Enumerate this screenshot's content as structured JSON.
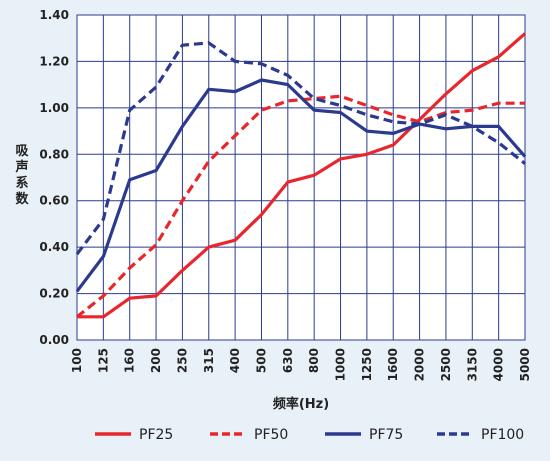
{
  "chart_data": {
    "type": "line",
    "title": "",
    "xlabel": "频率(Hz)",
    "ylabel": "吸声系数",
    "categories": [
      "100",
      "125",
      "160",
      "200",
      "250",
      "315",
      "400",
      "500",
      "630",
      "800",
      "1000",
      "1250",
      "1600",
      "2000",
      "2500",
      "3150",
      "4000",
      "5000"
    ],
    "ylim": [
      0,
      1.4
    ],
    "yticks": [
      "0.00",
      "0.20",
      "0.40",
      "0.60",
      "0.80",
      "1.00",
      "1.20",
      "1.40"
    ],
    "grid": true,
    "legend": "bottom",
    "series": [
      {
        "name": "PF25",
        "color": "#e8262c",
        "dash": false,
        "values": [
          0.1,
          0.1,
          0.18,
          0.19,
          0.3,
          0.4,
          0.43,
          0.54,
          0.68,
          0.71,
          0.78,
          0.8,
          0.84,
          0.95,
          1.06,
          1.16,
          1.22,
          1.32
        ]
      },
      {
        "name": "PF50",
        "color": "#e8262c",
        "dash": true,
        "values": [
          0.1,
          0.19,
          0.31,
          0.41,
          0.6,
          0.77,
          0.88,
          0.99,
          1.03,
          1.04,
          1.05,
          1.01,
          0.97,
          0.94,
          0.98,
          0.99,
          1.02,
          1.02
        ]
      },
      {
        "name": "PF75",
        "color": "#2b3a8f",
        "dash": false,
        "values": [
          0.21,
          0.36,
          0.69,
          0.73,
          0.92,
          1.08,
          1.07,
          1.12,
          1.1,
          0.99,
          0.98,
          0.9,
          0.89,
          0.93,
          0.91,
          0.92,
          0.92,
          0.79
        ]
      },
      {
        "name": "PF100",
        "color": "#2b3a8f",
        "dash": true,
        "values": [
          0.37,
          0.52,
          0.99,
          1.09,
          1.27,
          1.28,
          1.2,
          1.19,
          1.14,
          1.04,
          1.01,
          0.97,
          0.94,
          0.93,
          0.97,
          0.92,
          0.85,
          0.76
        ]
      }
    ]
  }
}
